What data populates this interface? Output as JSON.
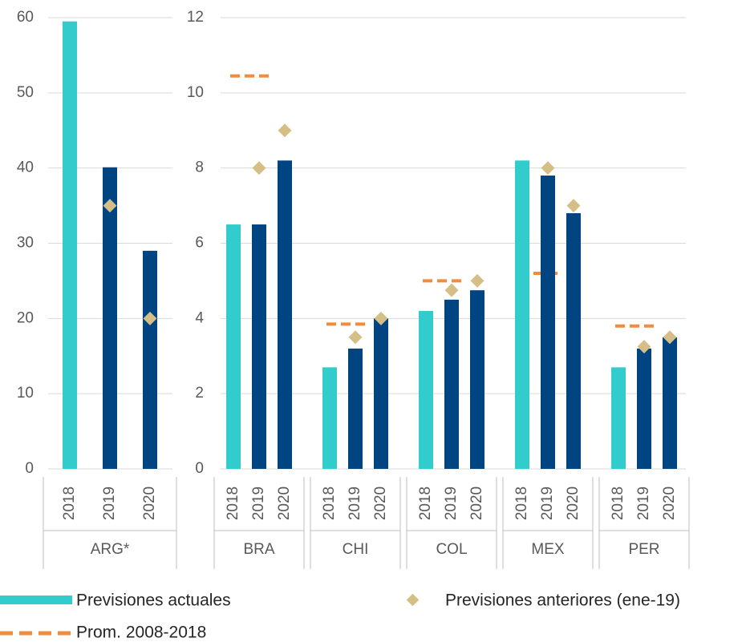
{
  "chart_data": [
    {
      "type": "bar",
      "ylim": [
        0,
        60
      ],
      "yticks": [
        0,
        10,
        20,
        30,
        40,
        50,
        60
      ],
      "grid": true,
      "groups": [
        {
          "name": "ARG*",
          "categories": [
            "2018",
            "2019",
            "2020"
          ]
        }
      ],
      "series": [
        {
          "name": "Previsiones actuales",
          "color": "#33cccc",
          "values": [
            59.5,
            null,
            null
          ]
        },
        {
          "color": "#004481",
          "values": [
            null,
            40.1,
            29
          ]
        },
        {
          "name": "Previsiones anteriores (ene-19)",
          "color": "#d6bf86",
          "values": [
            null,
            35,
            20
          ]
        }
      ],
      "averages": {
        "name": "Prom. 2008-2018",
        "color": "#f28c3c",
        "values": [
          null
        ]
      }
    },
    {
      "type": "bar",
      "ylim": [
        0,
        12
      ],
      "yticks": [
        0,
        2,
        4,
        6,
        8,
        10,
        12
      ],
      "grid": true,
      "groups": [
        {
          "name": "BRA",
          "categories": [
            "2018",
            "2019",
            "2020"
          ]
        },
        {
          "name": "CHI",
          "categories": [
            "2018",
            "2019",
            "2020"
          ]
        },
        {
          "name": "COL",
          "categories": [
            "2018",
            "2019",
            "2020"
          ]
        },
        {
          "name": "MEX",
          "categories": [
            "2018",
            "2019",
            "2020"
          ]
        },
        {
          "name": "PER",
          "categories": [
            "2018",
            "2019",
            "2020"
          ]
        }
      ],
      "series": [
        {
          "color": "#33cccc",
          "values": [
            6.5,
            null,
            null,
            2.7,
            null,
            null,
            4.2,
            null,
            null,
            8.2,
            null,
            null,
            2.7,
            null,
            null
          ]
        },
        {
          "color": "#004481",
          "values": [
            null,
            6.5,
            8.2,
            null,
            3.2,
            4.0,
            null,
            4.5,
            4.75,
            null,
            7.8,
            6.8,
            null,
            3.2,
            3.5
          ]
        },
        {
          "color": "#d6bf86",
          "values": [
            null,
            8,
            9,
            null,
            3.5,
            4.0,
            null,
            4.75,
            5.0,
            null,
            8,
            7,
            null,
            3.25,
            3.5
          ]
        }
      ],
      "averages": {
        "color": "#f28c3c",
        "values": [
          10.45,
          3.85,
          5.0,
          5.2,
          3.8
        ]
      }
    }
  ]
}
